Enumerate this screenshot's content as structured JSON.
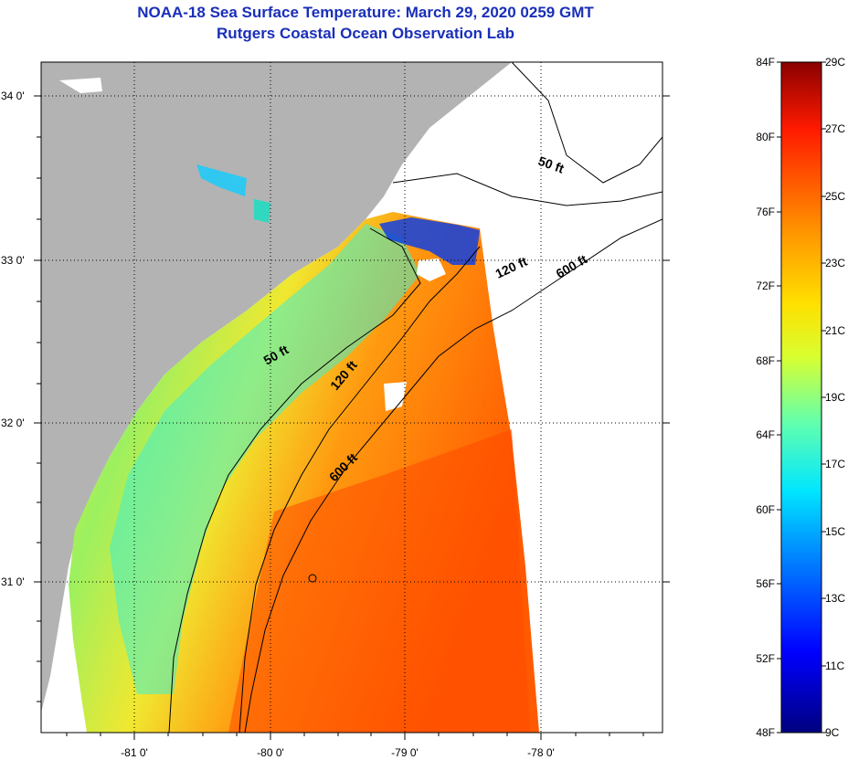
{
  "header": {
    "title": "NOAA-18 Sea Surface Temperature:  March 29, 2020 0259 GMT",
    "subtitle": "Rutgers Coastal Ocean Observation Lab"
  },
  "map": {
    "lat_labels": [
      "34 0'",
      "33 0'",
      "32 0'",
      "31 0'"
    ],
    "lon_labels": [
      "-81 0'",
      "-80 0'",
      "-79 0'",
      "-78 0'"
    ],
    "contour_labels": [
      "50 ft",
      "120 ft",
      "600 ft",
      "50 ft",
      "120 ft",
      "600 ft"
    ],
    "colors": {
      "land": "#b3b3b3",
      "no_data": "#ffffff",
      "contour": "#000000"
    }
  },
  "colorbar": {
    "f_labels": [
      "84F",
      "80F",
      "76F",
      "72F",
      "68F",
      "64F",
      "60F",
      "56F",
      "52F",
      "48F"
    ],
    "c_labels": [
      "29C",
      "27C",
      "25C",
      "23C",
      "21C",
      "19C",
      "17C",
      "15C",
      "13C",
      "11C",
      "9C"
    ],
    "colors": [
      "#000080",
      "#0000ff",
      "#00aaff",
      "#00ffff",
      "#70ffc0",
      "#ffff00",
      "#ffaa00",
      "#ff5000",
      "#ff0000",
      "#800000"
    ]
  }
}
